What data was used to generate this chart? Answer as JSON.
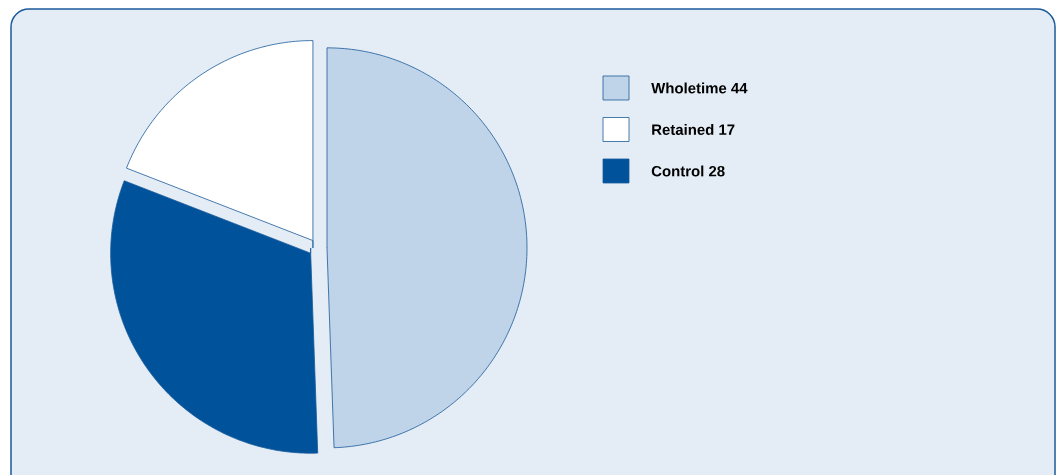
{
  "chart_data": {
    "type": "pie",
    "categories": [
      "Wholetime 44",
      "Retained 17",
      "Control 28"
    ],
    "values": [
      44,
      17,
      28
    ],
    "colors": [
      "#bfd4e8",
      "#ffffff",
      "#00529b"
    ],
    "legend": "top right"
  }
}
